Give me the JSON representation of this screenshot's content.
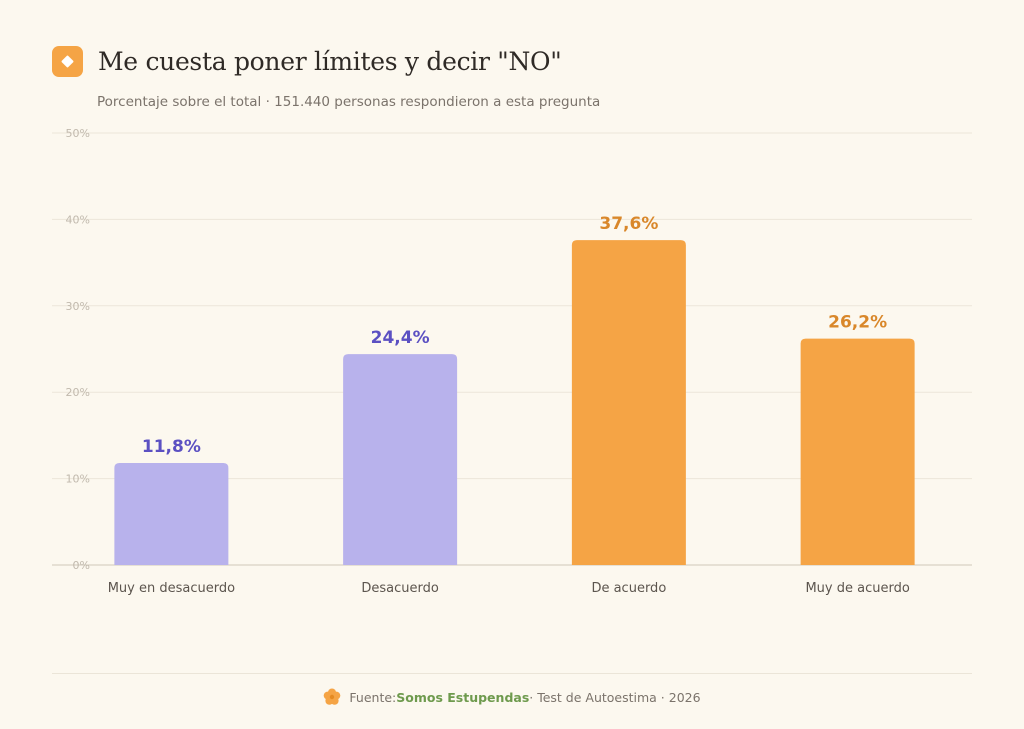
{
  "header": {
    "title": "Me cuesta poner límites y decir \"NO\"",
    "subtitle": "Porcentaje sobre el total · 151.440 personas respondieron a esta pregunta",
    "badge_icon": "diamond-icon",
    "accent": "#f5a445"
  },
  "chart_data": {
    "type": "bar",
    "title": "Me cuesta poner límites y decir \"NO\"",
    "subtitle": "Porcentaje sobre el total · 151.440 personas respondieron a esta pregunta",
    "categories": [
      "Muy en desacuerdo",
      "Desacuerdo",
      "De acuerdo",
      "Muy de acuerdo"
    ],
    "values": [
      11.8,
      24.4,
      37.6,
      26.2
    ],
    "value_labels": [
      "11,8%",
      "24,4%",
      "37,6%",
      "26,2%"
    ],
    "bar_colors": [
      "#b8b2ec",
      "#b8b2ec",
      "#f5a445",
      "#f5a445"
    ],
    "label_colors": [
      "#5b50c2",
      "#5b50c2",
      "#d9872a",
      "#d9872a"
    ],
    "ylim": [
      0,
      50
    ],
    "yticks": [
      0,
      10,
      20,
      30,
      40,
      50
    ],
    "ytick_labels": [
      "0%",
      "10%",
      "20%",
      "30%",
      "40%",
      "50%"
    ],
    "grid": true,
    "xlabel": "",
    "ylabel": ""
  },
  "footer": {
    "prefix": "Fuente: ",
    "brand": "Somos Estupendas",
    "suffix": " · Test de Autoestima · 2026",
    "icon": "flower-icon"
  }
}
